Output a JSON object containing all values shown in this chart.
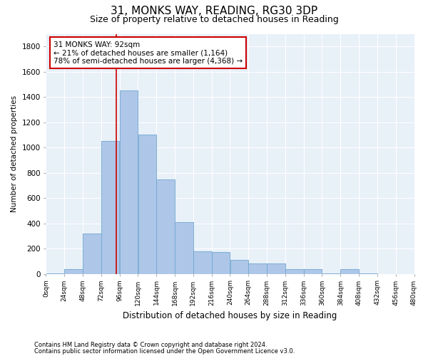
{
  "title1": "31, MONKS WAY, READING, RG30 3DP",
  "title2": "Size of property relative to detached houses in Reading",
  "xlabel": "Distribution of detached houses by size in Reading",
  "ylabel": "Number of detached properties",
  "bar_values": [
    5,
    40,
    320,
    1050,
    1450,
    1100,
    750,
    410,
    180,
    170,
    110,
    85,
    85,
    40,
    40,
    5,
    40,
    5,
    0,
    0
  ],
  "bin_edges": [
    0,
    24,
    48,
    72,
    96,
    120,
    144,
    168,
    192,
    216,
    240,
    264,
    288,
    312,
    336,
    360,
    384,
    408,
    432,
    456,
    480
  ],
  "bar_color": "#aec6e8",
  "bar_edge_color": "#6fa8d0",
  "property_sqm": 92,
  "red_line_color": "#cc0000",
  "annotation_text": "31 MONKS WAY: 92sqm\n← 21% of detached houses are smaller (1,164)\n78% of semi-detached houses are larger (4,368) →",
  "annotation_box_color": "#ffffff",
  "annotation_box_edge": "#cc0000",
  "annotation_fontsize": 7.5,
  "ylim": [
    0,
    1900
  ],
  "yticks": [
    0,
    200,
    400,
    600,
    800,
    1000,
    1200,
    1400,
    1600,
    1800
  ],
  "footer1": "Contains HM Land Registry data © Crown copyright and database right 2024.",
  "footer2": "Contains public sector information licensed under the Open Government Licence v3.0.",
  "bg_color": "#ffffff",
  "plot_bg_color": "#e8f0f8",
  "grid_color": "#ffffff",
  "title1_fontsize": 11,
  "title2_fontsize": 9
}
